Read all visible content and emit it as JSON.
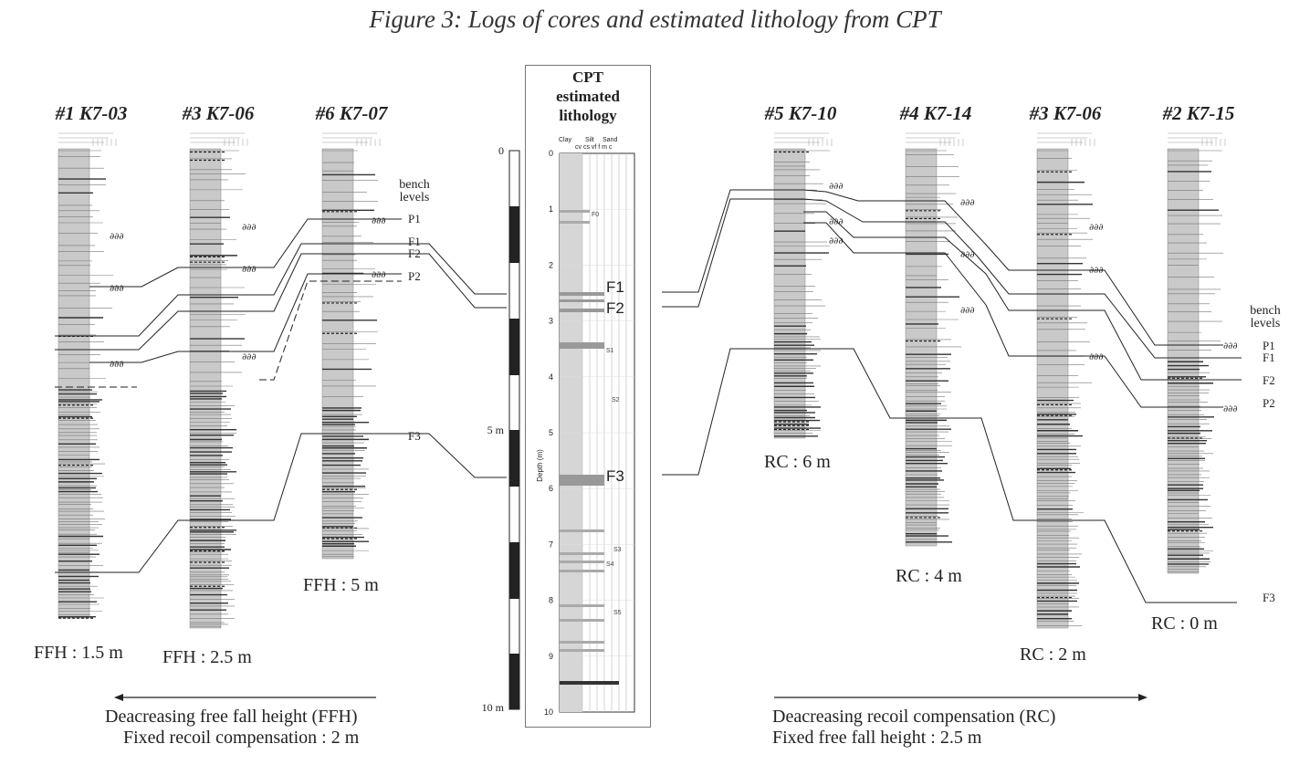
{
  "title": "Figure 3: Logs of cores and estimated lithology from CPT",
  "left_cores": [
    {
      "label": "#1 K7-03",
      "caption": "FFH : 1.5 m"
    },
    {
      "label": "#3 K7-06",
      "caption": "FFH : 2.5 m"
    },
    {
      "label": "#6 K7-07",
      "caption": "FFH : 5 m"
    }
  ],
  "right_cores": [
    {
      "label": "#5 K7-10",
      "caption": "RC : 6 m"
    },
    {
      "label": "#4 K7-14",
      "caption": "RC : 4 m"
    },
    {
      "label": "#3 K7-06",
      "caption": "RC : 2 m"
    },
    {
      "label": "#2 K7-15",
      "caption": "RC : 0 m"
    }
  ],
  "bench_levels_label": "bench levels",
  "left_bench": {
    "P1": "P1",
    "F1": "F1",
    "F2": "F2",
    "P2": "P2",
    "F3": "F3"
  },
  "right_bench": {
    "P1": "P1",
    "F1": "F1",
    "F2": "F2",
    "P2": "P2",
    "F3": "F3"
  },
  "scale": {
    "top": "0",
    "mid": "5 m",
    "bottom": "10 m"
  },
  "cpt": {
    "title_line1": "CPT",
    "title_line2": "estimated",
    "title_line3": "lithology",
    "head_clay": "Clay",
    "head_silt": "Silt",
    "head_sand": "Sand",
    "head_sub": "cv cs   vf  f  m  c",
    "depth_axis": "Depth (m)",
    "depth_ticks": [
      "0",
      "1",
      "2",
      "3",
      "4",
      "5",
      "6",
      "7",
      "8",
      "9",
      "10"
    ],
    "markers": {
      "F0": "F0",
      "F1": "F1",
      "F2": "F2",
      "F3": "F3",
      "S1": "S1",
      "S2": "S2",
      "S3": "S3",
      "S4": "S4",
      "S5": "S5"
    }
  },
  "left_note": {
    "line1": "Deacreasing free fall height (FFH)",
    "line2": "Fixed recoil compensation : 2 m"
  },
  "right_note": {
    "line1": "Deacreasing recoil compensation (RC)",
    "line2": "Fixed free fall height : 2.5 m"
  }
}
